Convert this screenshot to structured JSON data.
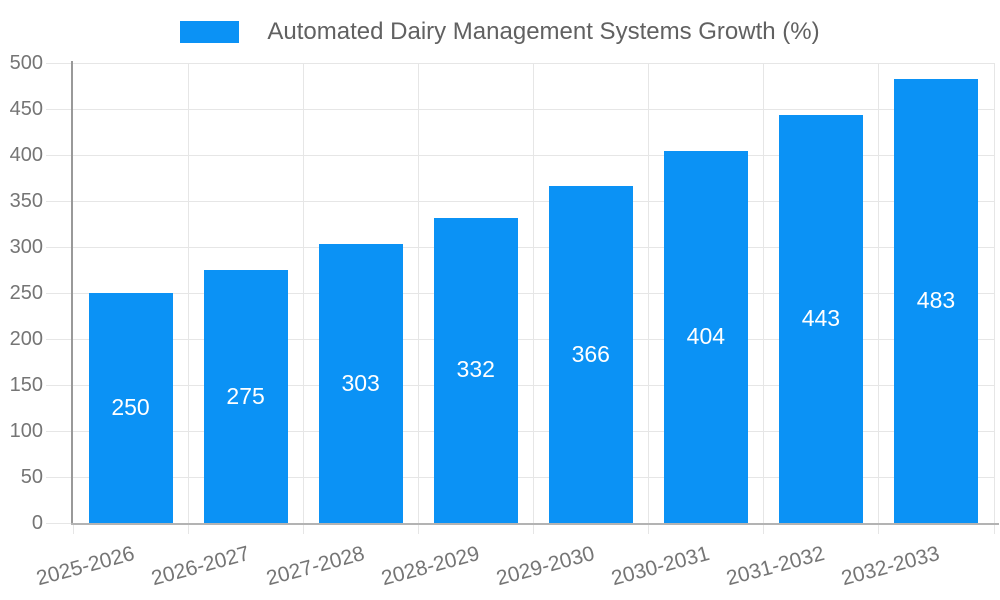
{
  "chart_data": {
    "type": "bar",
    "title": "Automated Dairy Management Systems Growth (%)",
    "legend": {
      "position": "top",
      "label": "Automated Dairy Management Systems Growth (%)"
    },
    "categories": [
      "2025-2026",
      "2026-2027",
      "2027-2028",
      "2028-2029",
      "2029-2030",
      "2030-2031",
      "2031-2032",
      "2032-2033"
    ],
    "values": [
      250,
      275,
      303,
      332,
      366,
      404,
      443,
      483
    ],
    "data_labels": [
      "250",
      "275",
      "303",
      "332",
      "366",
      "404",
      "443",
      "483"
    ],
    "xlabel": "",
    "ylabel": "",
    "ylim": [
      0,
      500
    ],
    "ytick_step": 50,
    "yticks": [
      0,
      50,
      100,
      150,
      200,
      250,
      300,
      350,
      400,
      450,
      500
    ],
    "grid": true
  },
  "colors": {
    "bar": "#0b92f5",
    "grid": "#e6e6e6",
    "x_axis_line": "#b3b3b3",
    "y_axis_line": "#999999",
    "axis_text": "#757575",
    "legend_text": "#616161",
    "data_label_text": "#ffffff",
    "background": "#ffffff"
  }
}
